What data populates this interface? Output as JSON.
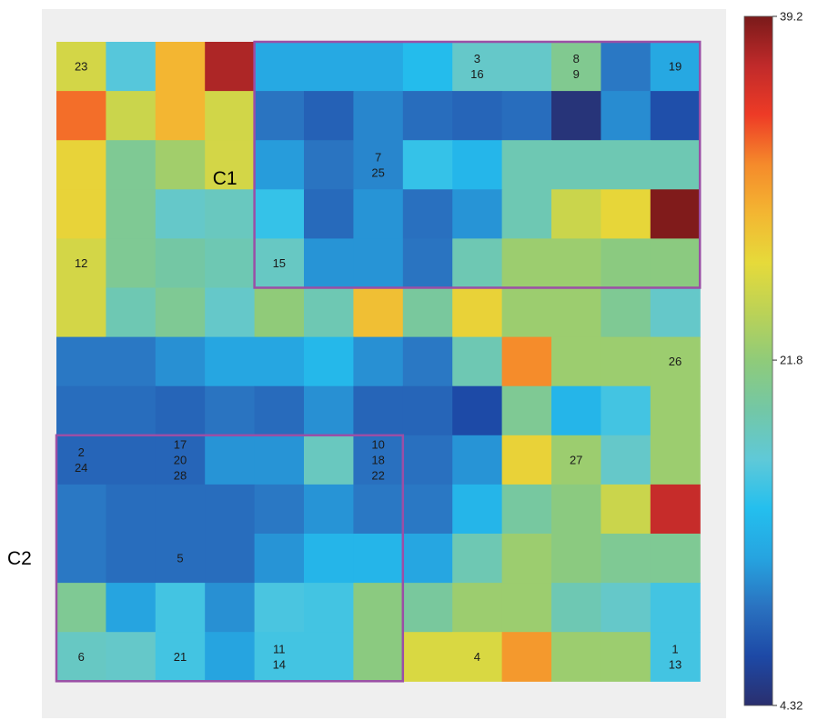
{
  "chart_data": {
    "type": "heatmap",
    "title": "",
    "xlabel": "",
    "ylabel": "",
    "rows": 13,
    "cols": 13,
    "colorbar": {
      "min": 4.32,
      "max": 39.2,
      "ticks": [
        {
          "value": 39.2,
          "label": "39.2"
        },
        {
          "value": 21.8,
          "label": "21.8"
        },
        {
          "value": 4.32,
          "label": "4.32"
        }
      ],
      "colormap": [
        "#2a2f6e",
        "#1d49a6",
        "#2a72c0",
        "#26a4e0",
        "#24bfee",
        "#5fc9d8",
        "#73c7a6",
        "#8fcb7a",
        "#bcd256",
        "#e6da3a",
        "#f3b632",
        "#f58a2b",
        "#ee3b26",
        "#c02a2a",
        "#7a1a1a"
      ]
    },
    "values": [
      [
        25.6,
        16.4,
        29.2,
        37.4,
        12.3,
        12.3,
        12.3,
        14.0,
        17.5,
        17.5,
        20.5,
        9.6,
        12.2
      ],
      [
        32.6,
        25.1,
        29.2,
        25.5,
        9.4,
        8.3,
        10.3,
        9.0,
        8.5,
        9.0,
        4.8,
        10.6,
        7.2
      ],
      [
        27.2,
        20.3,
        22.8,
        25.6,
        11.4,
        9.4,
        10.3,
        15.0,
        13.5,
        18.6,
        18.6,
        18.6,
        18.6
      ],
      [
        27.2,
        20.3,
        17.5,
        18.0,
        15.0,
        8.8,
        11.0,
        9.2,
        11.0,
        18.6,
        25.1,
        27.0,
        39.0
      ],
      [
        25.6,
        20.3,
        19.4,
        18.6,
        17.8,
        11.0,
        11.0,
        9.4,
        18.6,
        22.5,
        22.5,
        21.4,
        21.4
      ],
      [
        25.6,
        18.6,
        20.3,
        17.5,
        21.8,
        18.6,
        28.6,
        19.8,
        27.3,
        22.5,
        22.5,
        20.3,
        17.5
      ],
      [
        9.6,
        9.6,
        10.8,
        12.0,
        12.0,
        13.6,
        10.8,
        9.6,
        18.6,
        31.6,
        22.5,
        22.5,
        22.5
      ],
      [
        9.0,
        9.0,
        8.5,
        9.4,
        8.9,
        10.8,
        8.5,
        8.5,
        6.9,
        20.3,
        13.4,
        15.6,
        22.5
      ],
      [
        8.5,
        8.5,
        8.5,
        11.0,
        11.0,
        18.0,
        9.2,
        9.2,
        11.0,
        27.3,
        22.5,
        17.5,
        22.5
      ],
      [
        9.6,
        9.0,
        9.0,
        9.0,
        9.6,
        11.0,
        9.6,
        9.6,
        13.4,
        19.6,
        21.4,
        25.1,
        36.4
      ],
      [
        9.6,
        9.0,
        9.0,
        9.0,
        11.0,
        13.4,
        13.4,
        12.0,
        18.6,
        22.5,
        21.4,
        20.3,
        20.3
      ],
      [
        20.3,
        11.8,
        15.6,
        10.8,
        15.9,
        15.6,
        21.4,
        19.8,
        22.5,
        22.5,
        18.6,
        17.5,
        15.6
      ],
      [
        17.8,
        17.5,
        15.6,
        11.8,
        15.6,
        15.6,
        21.4,
        26.0,
        26.0,
        30.9,
        22.5,
        22.5,
        15.6
      ]
    ],
    "cell_labels": [
      {
        "row": 0,
        "col": 0,
        "lines": [
          "23"
        ]
      },
      {
        "row": 0,
        "col": 8,
        "lines": [
          "3",
          "16"
        ]
      },
      {
        "row": 0,
        "col": 10,
        "lines": [
          "8",
          "9"
        ]
      },
      {
        "row": 0,
        "col": 12,
        "lines": [
          "19"
        ]
      },
      {
        "row": 2,
        "col": 6,
        "lines": [
          "7",
          "25"
        ]
      },
      {
        "row": 4,
        "col": 0,
        "lines": [
          "12"
        ]
      },
      {
        "row": 4,
        "col": 4,
        "lines": [
          "15"
        ]
      },
      {
        "row": 6,
        "col": 12,
        "lines": [
          "26"
        ]
      },
      {
        "row": 8,
        "col": 0,
        "lines": [
          "2",
          "24"
        ]
      },
      {
        "row": 8,
        "col": 2,
        "lines": [
          "17",
          "20",
          "28"
        ]
      },
      {
        "row": 8,
        "col": 6,
        "lines": [
          "10",
          "18",
          "22"
        ]
      },
      {
        "row": 8,
        "col": 10,
        "lines": [
          "27"
        ]
      },
      {
        "row": 10,
        "col": 2,
        "lines": [
          "5"
        ]
      },
      {
        "row": 12,
        "col": 0,
        "lines": [
          "6"
        ]
      },
      {
        "row": 12,
        "col": 2,
        "lines": [
          "21"
        ]
      },
      {
        "row": 12,
        "col": 4,
        "lines": [
          "11",
          "14"
        ]
      },
      {
        "row": 12,
        "col": 8,
        "lines": [
          "4"
        ]
      },
      {
        "row": 12,
        "col": 12,
        "lines": [
          "1",
          "13"
        ]
      }
    ],
    "clusters": [
      {
        "label": "C1",
        "row_start": 0,
        "row_end": 4,
        "col_start": 4,
        "col_end": 12,
        "color": "#9b4fa6"
      },
      {
        "label": "C2",
        "row_start": 8,
        "row_end": 12,
        "col_start": 0,
        "col_end": 6,
        "color": "#9b4fa6"
      }
    ]
  }
}
